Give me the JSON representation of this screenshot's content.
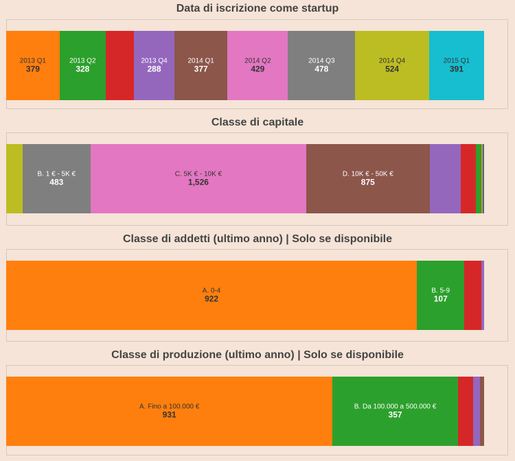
{
  "chart_data": [
    {
      "type": "bar",
      "orientation": "horizontal-stacked",
      "title": "Data di iscrizione come startup",
      "segments": [
        {
          "label": "2013 Q1",
          "value": 379,
          "color": "#ff7f0e",
          "text_color": "#333333",
          "show_label": true
        },
        {
          "label": "2013 Q2",
          "value": 328,
          "color": "#2ca02c",
          "text_color": "#ffffff",
          "show_label": true
        },
        {
          "label": "",
          "value": 200,
          "color": "#d62728",
          "text_color": "#ffffff",
          "show_label": false
        },
        {
          "label": "2013 Q4",
          "value": 288,
          "color": "#9467bd",
          "text_color": "#ffffff",
          "show_label": true
        },
        {
          "label": "2014 Q1",
          "value": 377,
          "color": "#8c564b",
          "text_color": "#ffffff",
          "show_label": true
        },
        {
          "label": "2014 Q2",
          "value": 429,
          "color": "#e377c2",
          "text_color": "#333333",
          "show_label": true
        },
        {
          "label": "2014 Q3",
          "value": 478,
          "color": "#7f7f7f",
          "text_color": "#ffffff",
          "show_label": true
        },
        {
          "label": "2014 Q4",
          "value": 524,
          "color": "#bcbd22",
          "text_color": "#333333",
          "show_label": true
        },
        {
          "label": "2015 Q1",
          "value": 391,
          "color": "#17becf",
          "text_color": "#333333",
          "show_label": true
        }
      ]
    },
    {
      "type": "bar",
      "orientation": "horizontal-stacked",
      "title": "Classe di capitale",
      "segments": [
        {
          "label": "",
          "value": 115,
          "color": "#bcbd22",
          "text_color": "#333333",
          "show_label": false
        },
        {
          "label": "B. 1 € - 5K €",
          "value": 483,
          "color": "#7f7f7f",
          "text_color": "#ffffff",
          "show_label": true
        },
        {
          "label": "C. 5K € - 10K €",
          "value": 1526,
          "color": "#e377c2",
          "text_color": "#333333",
          "show_label": true
        },
        {
          "label": "D. 10K € - 50K €",
          "value": 875,
          "color": "#8c564b",
          "text_color": "#ffffff",
          "show_label": true
        },
        {
          "label": "",
          "value": 220,
          "color": "#9467bd",
          "text_color": "#ffffff",
          "show_label": false
        },
        {
          "label": "",
          "value": 105,
          "color": "#d62728",
          "text_color": "#ffffff",
          "show_label": false
        },
        {
          "label": "",
          "value": 40,
          "color": "#2ca02c",
          "text_color": "#ffffff",
          "show_label": false
        },
        {
          "label": "",
          "value": 12,
          "color": "#ff7f0e",
          "text_color": "#ffffff",
          "show_label": false
        },
        {
          "label": "",
          "value": 8,
          "color": "#1f77b4",
          "text_color": "#ffffff",
          "show_label": false
        }
      ]
    },
    {
      "type": "bar",
      "orientation": "horizontal-stacked",
      "title": "Classe di addetti (ultimo anno) | Solo se disponibile",
      "segments": [
        {
          "label": "A. 0-4",
          "value": 922,
          "color": "#ff7f0e",
          "text_color": "#333333",
          "show_label": true
        },
        {
          "label": "B. 5-9",
          "value": 107,
          "color": "#2ca02c",
          "text_color": "#ffffff",
          "show_label": true
        },
        {
          "label": "",
          "value": 38,
          "color": "#d62728",
          "text_color": "#ffffff",
          "show_label": false
        },
        {
          "label": "",
          "value": 6,
          "color": "#9467bd",
          "text_color": "#ffffff",
          "show_label": false
        }
      ]
    },
    {
      "type": "bar",
      "orientation": "horizontal-stacked",
      "title": "Classe di produzione (ultimo anno) | Solo se disponibile",
      "segments": [
        {
          "label": "A. Fino a 100.000 €",
          "value": 931,
          "color": "#ff7f0e",
          "text_color": "#333333",
          "show_label": true
        },
        {
          "label": "B. Da 100.000 a 500.000 €",
          "value": 357,
          "color": "#2ca02c",
          "text_color": "#ffffff",
          "show_label": true
        },
        {
          "label": "",
          "value": 44,
          "color": "#d62728",
          "text_color": "#ffffff",
          "show_label": false
        },
        {
          "label": "",
          "value": 19,
          "color": "#9467bd",
          "text_color": "#ffffff",
          "show_label": false
        },
        {
          "label": "",
          "value": 12,
          "color": "#8c564b",
          "text_color": "#ffffff",
          "show_label": false
        }
      ]
    }
  ]
}
